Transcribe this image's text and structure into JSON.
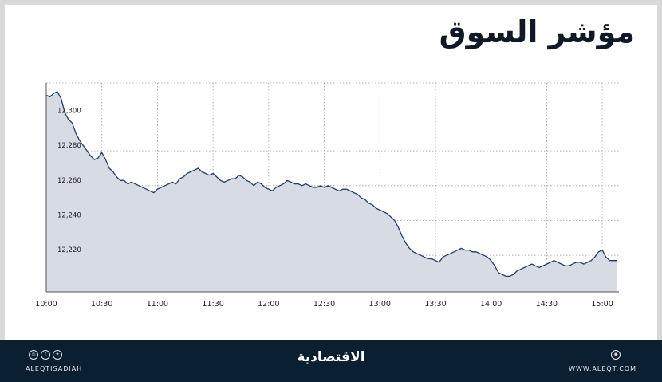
{
  "title": "مؤشر السوق",
  "chart_data": {
    "type": "area",
    "title": "",
    "xlabel": "",
    "ylabel": "",
    "x_ticks": [
      "10:00",
      "10:30",
      "11:00",
      "11:30",
      "12:00",
      "12:30",
      "13:00",
      "13:30",
      "14:00",
      "14:30",
      "15:00"
    ],
    "y_ticks": [
      12220,
      12240,
      12260,
      12280,
      12300
    ],
    "y_tick_labels": [
      "12,220",
      "12,240",
      "12,260",
      "12,280",
      "12,300"
    ],
    "xlim": [
      "10:00",
      "15:09"
    ],
    "ylim": [
      12199,
      12319
    ],
    "grid": true,
    "line_color": "#243b6b",
    "fill_color": "#d7dbe3",
    "series": [
      {
        "x": [
          "10:00",
          "10:02",
          "10:04",
          "10:06",
          "10:08",
          "10:10",
          "10:12",
          "10:14",
          "10:16",
          "10:18",
          "10:20",
          "10:22",
          "10:24",
          "10:26",
          "10:28",
          "10:30",
          "10:32",
          "10:34",
          "10:36",
          "10:38",
          "10:40",
          "10:42",
          "10:44",
          "10:46",
          "10:48",
          "10:50",
          "10:52",
          "10:54",
          "10:56",
          "10:58",
          "11:00",
          "11:02",
          "11:04",
          "11:06",
          "11:08",
          "11:10",
          "11:12",
          "11:14",
          "11:16",
          "11:18",
          "11:20",
          "11:22",
          "11:24",
          "11:26",
          "11:28",
          "11:30",
          "11:32",
          "11:34",
          "11:36",
          "11:38",
          "11:40",
          "11:42",
          "11:44",
          "11:46",
          "11:48",
          "11:50",
          "11:52",
          "11:54",
          "11:56",
          "11:58",
          "12:00",
          "12:02",
          "12:04",
          "12:06",
          "12:08",
          "12:10",
          "12:12",
          "12:14",
          "12:16",
          "12:18",
          "12:20",
          "12:22",
          "12:24",
          "12:26",
          "12:28",
          "12:30",
          "12:32",
          "12:34",
          "12:36",
          "12:38",
          "12:40",
          "12:42",
          "12:44",
          "12:46",
          "12:48",
          "12:50",
          "12:52",
          "12:54",
          "12:56",
          "12:58",
          "13:00",
          "13:02",
          "13:04",
          "13:06",
          "13:08",
          "13:10",
          "13:12",
          "13:14",
          "13:16",
          "13:18",
          "13:20",
          "13:22",
          "13:24",
          "13:26",
          "13:28",
          "13:30",
          "13:32",
          "13:34",
          "13:36",
          "13:38",
          "13:40",
          "13:42",
          "13:44",
          "13:46",
          "13:48",
          "13:50",
          "13:52",
          "13:54",
          "13:56",
          "13:58",
          "14:00",
          "14:02",
          "14:04",
          "14:06",
          "14:08",
          "14:10",
          "14:12",
          "14:14",
          "14:16",
          "14:18",
          "14:20",
          "14:22",
          "14:24",
          "14:26",
          "14:28",
          "14:30",
          "14:32",
          "14:34",
          "14:36",
          "14:38",
          "14:40",
          "14:42",
          "14:44",
          "14:46",
          "14:48",
          "14:50",
          "14:52",
          "14:54",
          "14:56",
          "14:58",
          "15:00",
          "15:02",
          "15:04",
          "15:06",
          "15:08"
        ],
        "y": [
          12312,
          12311,
          12313,
          12314,
          12310,
          12302,
          12298,
          12296,
          12290,
          12286,
          12283,
          12280,
          12277,
          12275,
          12276,
          12279,
          12275,
          12270,
          12268,
          12265,
          12263,
          12263,
          12261,
          12262,
          12261,
          12260,
          12259,
          12258,
          12257,
          12256,
          12258,
          12259,
          12260,
          12261,
          12262,
          12261,
          12264,
          12265,
          12267,
          12268,
          12269,
          12270,
          12268,
          12267,
          12266,
          12267,
          12265,
          12263,
          12262,
          12263,
          12264,
          12264,
          12266,
          12265,
          12263,
          12262,
          12260,
          12262,
          12261,
          12259,
          12258,
          12257,
          12259,
          12260,
          12261,
          12263,
          12262,
          12261,
          12261,
          12260,
          12261,
          12260,
          12259,
          12259,
          12260,
          12259,
          12260,
          12259,
          12258,
          12257,
          12258,
          12258,
          12257,
          12256,
          12255,
          12253,
          12252,
          12250,
          12249,
          12247,
          12246,
          12245,
          12244,
          12242,
          12240,
          12236,
          12231,
          12227,
          12224,
          12222,
          12221,
          12220,
          12219,
          12218,
          12218,
          12217,
          12216,
          12219,
          12220,
          12221,
          12222,
          12223,
          12224,
          12223,
          12223,
          12222,
          12222,
          12221,
          12220,
          12219,
          12217,
          12214,
          12210,
          12209,
          12208,
          12208,
          12209,
          12211,
          12212,
          12213,
          12214,
          12215,
          12214,
          12213,
          12214,
          12215,
          12216,
          12217,
          12216,
          12215,
          12214,
          12214,
          12215,
          12216,
          12216,
          12215,
          12216,
          12217,
          12219,
          12222,
          12223,
          12219,
          12217,
          12217,
          12217
        ]
      }
    ]
  },
  "footer": {
    "handle": "ALEQTISADIAH",
    "brand": "الاقتصادية",
    "url": "WWW.ALEQT.COM"
  }
}
